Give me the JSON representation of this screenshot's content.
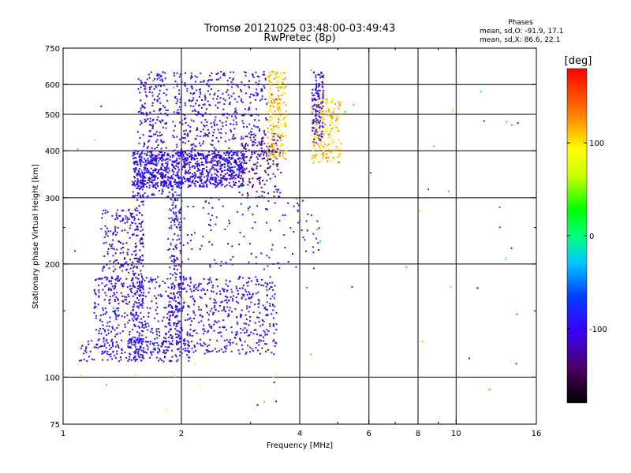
{
  "chart_data": {
    "type": "scatter",
    "title": "Tromsø 20121025 03:48:00-03:49:43",
    "subtitle": "RwPretec (8p)",
    "stats": {
      "heading": "Phases",
      "line1": "mean, sd,O: -91.9, 17.1",
      "line2": "mean, sd,X:  86.6, 22.1"
    },
    "xlabel": "Frequency [MHz]",
    "ylabel": "Stationary phase Virtual Height [km]",
    "x_scale": "log",
    "y_scale": "log",
    "xlim": [
      1,
      16
    ],
    "ylim": [
      75,
      750
    ],
    "x_ticks": [
      1,
      2,
      4,
      6,
      8,
      10,
      16
    ],
    "x_ticks_minor": [
      3,
      5,
      7,
      9
    ],
    "y_ticks": [
      75,
      100,
      200,
      300,
      400,
      500,
      600,
      750
    ],
    "y_ticks_minor": [
      150,
      250
    ],
    "x_gridlines": [
      2,
      4,
      6,
      8,
      10
    ],
    "y_gridlines": [
      100,
      200,
      300,
      400,
      500,
      600
    ],
    "grid": true,
    "colorbar": {
      "label": "[deg]",
      "min": -180,
      "max": 180,
      "ticks": [
        -100,
        0,
        100
      ],
      "colormap": "rainbow (black-purple-blue-cyan-green-yellow-red)"
    },
    "clusters": [
      {
        "name": "F-trace O low band",
        "f_min": 1.5,
        "f_max": 2.9,
        "h_min": 320,
        "h_max": 400,
        "phase": -100,
        "density": 900
      },
      {
        "name": "F-trace O cusp vertical",
        "f_min": 1.55,
        "f_max": 1.85,
        "h_min": 300,
        "h_max": 650,
        "phase": -100,
        "density": 250
      },
      {
        "name": "F-trace O upper",
        "f_min": 1.9,
        "f_max": 3.3,
        "h_min": 380,
        "h_max": 650,
        "phase": -100,
        "density": 450
      },
      {
        "name": "F-trace O curve",
        "f_min": 2.8,
        "f_max": 3.6,
        "h_min": 300,
        "h_max": 450,
        "phase": -130,
        "density": 160
      },
      {
        "name": "Vertical column f1.55",
        "f_min": 1.5,
        "f_max": 1.6,
        "h_min": 110,
        "h_max": 330,
        "phase": -100,
        "density": 220
      },
      {
        "name": "Vertical column f1.9",
        "f_min": 1.85,
        "f_max": 2.0,
        "h_min": 120,
        "h_max": 330,
        "phase": -100,
        "density": 200
      },
      {
        "name": "E-layer band",
        "f_min": 1.2,
        "f_max": 3.5,
        "h_min": 115,
        "h_max": 185,
        "phase": -100,
        "density": 850
      },
      {
        "name": "E-layer lower edge",
        "f_min": 1.1,
        "f_max": 2.1,
        "h_min": 110,
        "h_max": 125,
        "phase": -100,
        "density": 160
      },
      {
        "name": "Upper-left scatter",
        "f_min": 1.25,
        "f_max": 1.5,
        "h_min": 170,
        "h_max": 280,
        "phase": -100,
        "density": 150
      },
      {
        "name": "X-trace F high",
        "f_min": 3.3,
        "f_max": 3.7,
        "h_min": 380,
        "h_max": 650,
        "phase": 110,
        "density": 200
      },
      {
        "name": "X-trace F right",
        "f_min": 4.3,
        "f_max": 5.1,
        "h_min": 370,
        "h_max": 550,
        "phase": 110,
        "density": 200
      },
      {
        "name": "Second column f4.4",
        "f_min": 4.3,
        "f_max": 4.6,
        "h_min": 420,
        "h_max": 650,
        "phase": -100,
        "density": 120
      },
      {
        "name": "Scattered mid",
        "f_min": 2.0,
        "f_max": 4.5,
        "h_min": 190,
        "h_max": 300,
        "phase": -90,
        "density": 120
      },
      {
        "name": "Background sparse",
        "f_min": 1.05,
        "f_max": 16,
        "h_min": 80,
        "h_max": 700,
        "phase": 0,
        "density": 60
      }
    ]
  }
}
